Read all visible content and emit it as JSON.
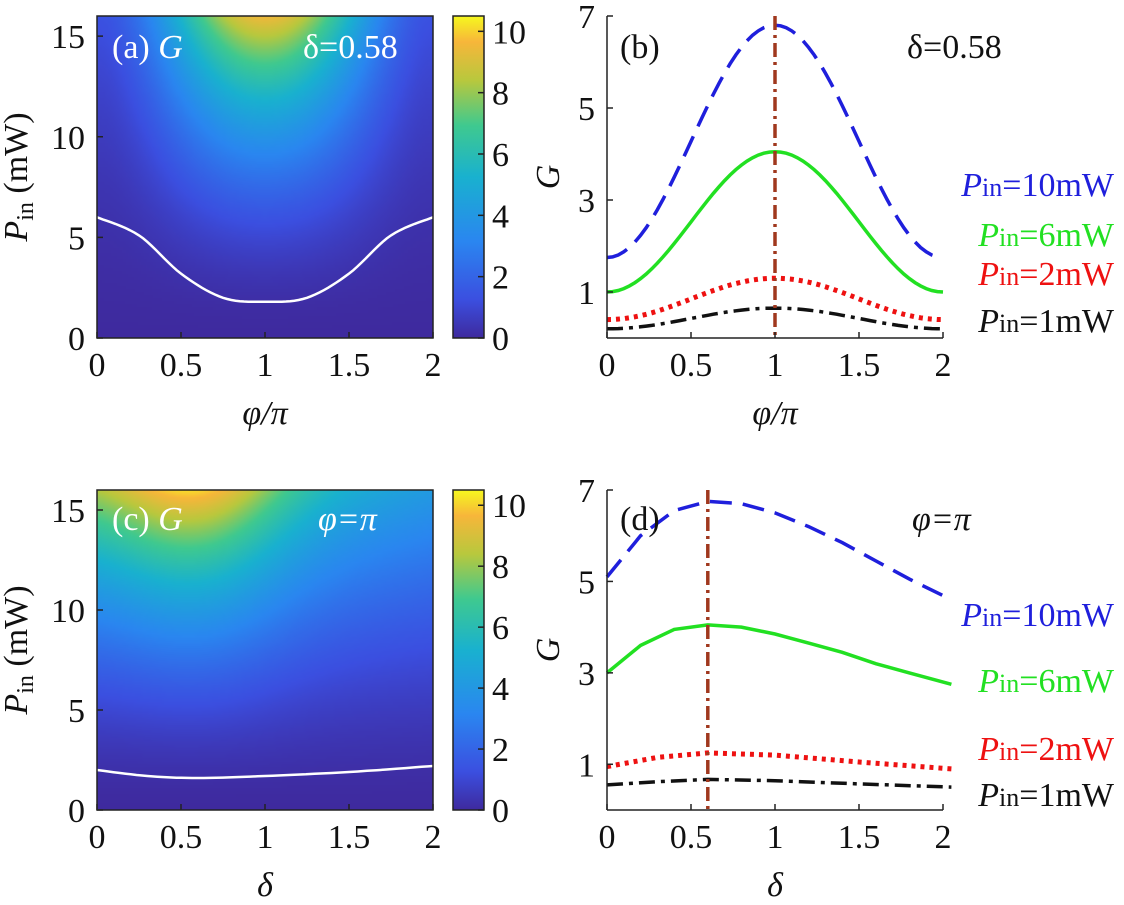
{
  "colors": {
    "p10": "#1f1fdc",
    "p6": "#22e022",
    "p2": "#ee1111",
    "p1": "#111111",
    "marker": "#a0381e",
    "contour": "#ffffff"
  },
  "chart_data": [
    {
      "id": "a",
      "type": "heatmap",
      "panel_label": "(a)",
      "quantity": "G",
      "annotation": "δ=0.58",
      "xlabel": "φ/π",
      "ylabel_main": "P",
      "ylabel_sub": "in",
      "ylabel_unit": " (mW)",
      "xlim": [
        0,
        2
      ],
      "ylim": [
        0,
        16
      ],
      "xticks": [
        "0",
        "0.5",
        "1",
        "1.5",
        "2"
      ],
      "yticks": [
        "0",
        "5",
        "10",
        "15"
      ],
      "colorbar": {
        "min": 0,
        "max": 10.5,
        "ticks": [
          "0",
          "2",
          "4",
          "6",
          "8",
          "10"
        ]
      },
      "contour_level_G": 1,
      "contour_points": [
        [
          0,
          6.0
        ],
        [
          0.25,
          5.1
        ],
        [
          0.5,
          3.2
        ],
        [
          0.75,
          2.0
        ],
        [
          1.0,
          1.8
        ],
        [
          1.25,
          2.0
        ],
        [
          1.5,
          3.2
        ],
        [
          1.75,
          5.1
        ],
        [
          2.0,
          6.0
        ]
      ]
    },
    {
      "id": "b",
      "type": "line",
      "panel_label": "(b)",
      "annotation": "δ=0.58",
      "xlabel": "φ/π",
      "ylabel": "G",
      "xlim": [
        0,
        2
      ],
      "ylim": [
        0,
        7
      ],
      "xticks": [
        "0",
        "0.5",
        "1",
        "1.5",
        "2"
      ],
      "yticks": [
        "1",
        "3",
        "5",
        "7"
      ],
      "marker_x": 1,
      "series": [
        {
          "name": "Pin=10mW",
          "label_main": "P",
          "label_sub": "in",
          "label_rest": "=10mW",
          "min": 1.75,
          "max": 6.8
        },
        {
          "name": "Pin=6mW",
          "label_main": "P",
          "label_sub": "in",
          "label_rest": "=6mW",
          "min": 1.0,
          "max": 4.05
        },
        {
          "name": "Pin=2mW",
          "label_main": "P",
          "label_sub": "in",
          "label_rest": "=2mW",
          "min": 0.4,
          "max": 1.3
        },
        {
          "name": "Pin=1mW",
          "label_main": "P",
          "label_sub": "in",
          "label_rest": "=1mW",
          "min": 0.2,
          "max": 0.65
        }
      ]
    },
    {
      "id": "c",
      "type": "heatmap",
      "panel_label": "(c)",
      "quantity": "G",
      "annotation": "φ=π",
      "xlabel": "δ",
      "ylabel_main": "P",
      "ylabel_sub": "in",
      "ylabel_unit": " (mW)",
      "xlim": [
        0,
        2
      ],
      "ylim": [
        0,
        16
      ],
      "xticks": [
        "0",
        "0.5",
        "1",
        "1.5",
        "2"
      ],
      "yticks": [
        "0",
        "5",
        "10",
        "15"
      ],
      "colorbar": {
        "min": 0,
        "max": 10.5,
        "ticks": [
          "0",
          "2",
          "4",
          "6",
          "8",
          "10"
        ]
      },
      "contour_level_G": 1,
      "contour_points": [
        [
          0,
          2.0
        ],
        [
          0.3,
          1.7
        ],
        [
          0.6,
          1.6
        ],
        [
          1.0,
          1.7
        ],
        [
          1.5,
          1.9
        ],
        [
          2.0,
          2.2
        ]
      ]
    },
    {
      "id": "d",
      "type": "line",
      "panel_label": "(d)",
      "annotation": "φ=π",
      "xlabel": "δ",
      "ylabel": "G",
      "xlim": [
        0,
        2
      ],
      "ylim": [
        0,
        7
      ],
      "xticks": [
        "0",
        "0.5",
        "1",
        "1.5",
        "2"
      ],
      "yticks": [
        "1",
        "3",
        "5",
        "7"
      ],
      "marker_x": 0.6,
      "series": [
        {
          "name": "Pin=10mW",
          "label_main": "P",
          "label_sub": "in",
          "label_rest": "=10mW",
          "x": [
            0,
            0.2,
            0.4,
            0.6,
            0.8,
            1.0,
            1.2,
            1.4,
            1.6,
            1.8,
            2.05
          ],
          "y": [
            5.1,
            6.0,
            6.55,
            6.75,
            6.7,
            6.5,
            6.2,
            5.85,
            5.45,
            5.05,
            4.6
          ]
        },
        {
          "name": "Pin=6mW",
          "label_main": "P",
          "label_sub": "in",
          "label_rest": "=6mW",
          "x": [
            0,
            0.2,
            0.4,
            0.6,
            0.8,
            1.0,
            1.2,
            1.4,
            1.6,
            1.8,
            2.05
          ],
          "y": [
            3.0,
            3.6,
            3.95,
            4.05,
            4.0,
            3.85,
            3.65,
            3.45,
            3.2,
            3.0,
            2.75
          ]
        },
        {
          "name": "Pin=2mW",
          "label_main": "P",
          "label_sub": "in",
          "label_rest": "=2mW",
          "x": [
            0,
            0.3,
            0.6,
            1.0,
            1.5,
            2.05
          ],
          "y": [
            0.95,
            1.15,
            1.25,
            1.2,
            1.05,
            0.9
          ]
        },
        {
          "name": "Pin=1mW",
          "label_main": "P",
          "label_sub": "in",
          "label_rest": "=1mW",
          "x": [
            0,
            0.3,
            0.6,
            1.0,
            1.5,
            2.05
          ],
          "y": [
            0.55,
            0.62,
            0.67,
            0.64,
            0.57,
            0.5
          ]
        }
      ]
    }
  ]
}
